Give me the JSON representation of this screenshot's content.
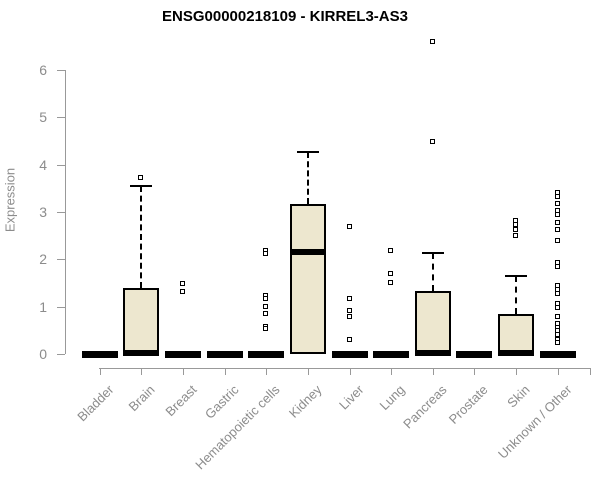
{
  "chart_data": {
    "type": "boxplot",
    "title": "ENSG00000218109 - KIRREL3-AS3",
    "ylabel": "Expression",
    "xlabel": "",
    "ylim": [
      0,
      6.8
    ],
    "yticks": [
      0,
      1,
      2,
      3,
      4,
      5,
      6
    ],
    "grid": false,
    "legend": "none",
    "x_label_rotation": -45,
    "categories": [
      "Bladder",
      "Brain",
      "Breast",
      "Gastric",
      "Hematopoietic cells",
      "Kidney",
      "Liver",
      "Lung",
      "Pancreas",
      "Prostate",
      "Skin",
      "Unknown / Other"
    ],
    "series": [
      {
        "category": "Bladder",
        "q1": 0,
        "median": 0,
        "q3": 0,
        "whisker_low": 0,
        "whisker_high": 0,
        "outliers": []
      },
      {
        "category": "Brain",
        "q1": 0,
        "median": 0.03,
        "q3": 1.4,
        "whisker_low": 0,
        "whisker_high": 3.55,
        "outliers": [
          3.72
        ]
      },
      {
        "category": "Breast",
        "q1": 0,
        "median": 0,
        "q3": 0,
        "whisker_low": 0,
        "whisker_high": 0,
        "outliers": [
          1.48,
          1.3
        ]
      },
      {
        "category": "Gastric",
        "q1": 0,
        "median": 0,
        "q3": 0,
        "whisker_low": 0,
        "whisker_high": 0,
        "outliers": []
      },
      {
        "category": "Hematopoietic cells",
        "q1": 0,
        "median": 0,
        "q3": 0,
        "whisker_low": 0,
        "whisker_high": 0,
        "outliers": [
          2.18,
          2.12,
          1.23,
          1.17,
          1.0,
          0.85,
          0.58,
          0.52
        ]
      },
      {
        "category": "Kidney",
        "q1": 0,
        "median": 2.15,
        "q3": 3.17,
        "whisker_low": 0,
        "whisker_high": 4.27,
        "outliers": []
      },
      {
        "category": "Liver",
        "q1": 0,
        "median": 0,
        "q3": 0,
        "whisker_low": 0,
        "whisker_high": 0,
        "outliers": [
          2.69,
          1.16,
          0.9,
          0.78,
          0.3
        ]
      },
      {
        "category": "Lung",
        "q1": 0,
        "median": 0,
        "q3": 0,
        "whisker_low": 0,
        "whisker_high": 0,
        "outliers": [
          2.18,
          1.7,
          1.51
        ]
      },
      {
        "category": "Pancreas",
        "q1": 0,
        "median": 0.03,
        "q3": 1.34,
        "whisker_low": 0,
        "whisker_high": 2.14,
        "outliers": [
          4.48,
          6.59
        ]
      },
      {
        "category": "Prostate",
        "q1": 0,
        "median": 0,
        "q3": 0,
        "whisker_low": 0,
        "whisker_high": 0,
        "outliers": []
      },
      {
        "category": "Skin",
        "q1": 0,
        "median": 0.03,
        "q3": 0.84,
        "whisker_low": 0,
        "whisker_high": 1.65,
        "outliers": [
          2.82,
          2.72,
          2.62,
          2.5
        ]
      },
      {
        "category": "Unknown / Other",
        "q1": 0,
        "median": 0,
        "q3": 0,
        "whisker_low": 0,
        "whisker_high": 0,
        "outliers": [
          3.4,
          3.32,
          3.17,
          3.03,
          2.93,
          2.77,
          2.62,
          2.39,
          1.93,
          1.84,
          1.44,
          1.35,
          1.27,
          1.05,
          0.97,
          0.78,
          0.63,
          0.55,
          0.48,
          0.4,
          0.3,
          0.23
        ]
      }
    ],
    "colors": {
      "box_fill": "#EDE7CF",
      "box_stroke": "#000000",
      "median": "#000000",
      "whisker": "#000000",
      "outlier": "#000000",
      "axis": "#999999",
      "tick_label": "#8C8C8C",
      "title": "#000000",
      "background": "#FFFFFF"
    }
  }
}
